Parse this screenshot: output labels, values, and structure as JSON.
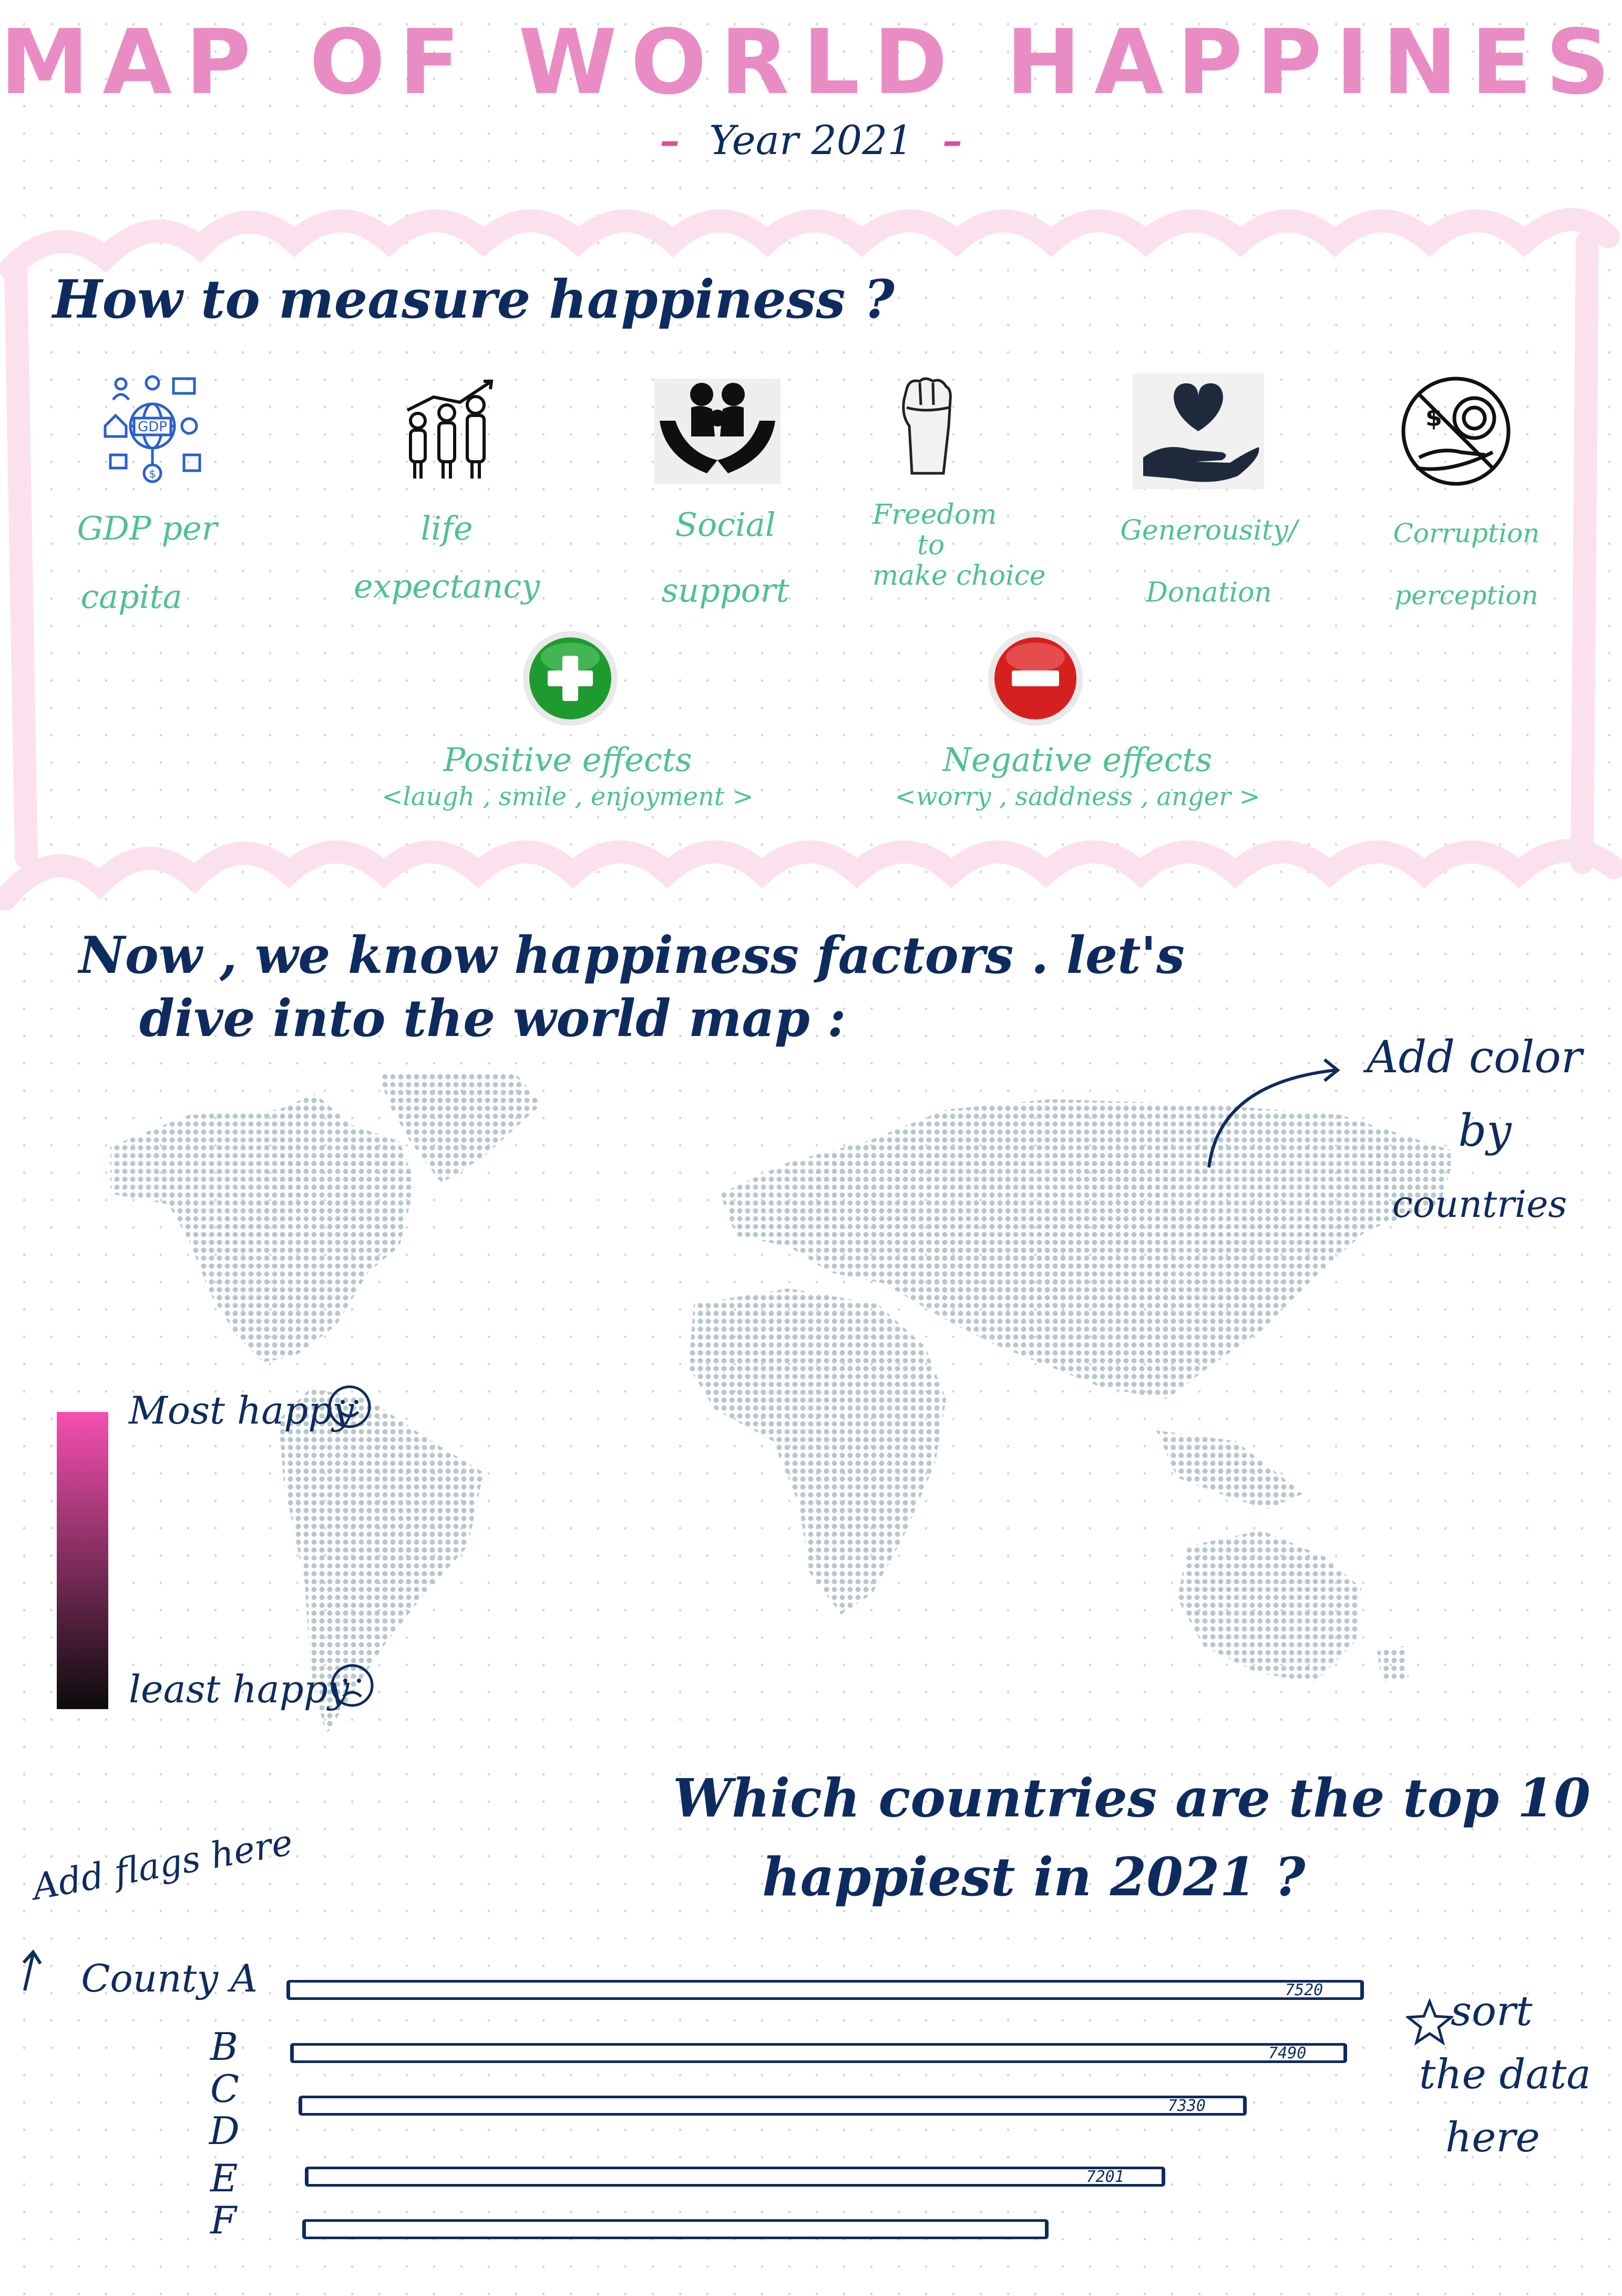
{
  "title": "MAP OF WORLD HAPPINESS",
  "year_line": "Year 2021",
  "measure": {
    "heading": "How to measure happiness ?",
    "factors": [
      {
        "icon": "gdp-network-icon",
        "label_line1": "GDP per",
        "label_line2": "capita"
      },
      {
        "icon": "people-growth-icon",
        "label_line1": "life",
        "label_line2": "expectancy"
      },
      {
        "icon": "family-hands-icon",
        "label_line1": "Social",
        "label_line2": "support"
      },
      {
        "icon": "raised-fist-icon",
        "label_line1": "Freedom",
        "label_line2": "to",
        "label_line3": "make choice"
      },
      {
        "icon": "heart-hand-icon",
        "label_line1": "Generousity/",
        "label_line2": "Donation"
      },
      {
        "icon": "no-bribery-icon",
        "label_line1": "Corruption",
        "label_line2": "perception"
      }
    ],
    "effects": [
      {
        "icon": "plus-circle-icon",
        "color": "#1e9b2f",
        "label_line1": "Positive effects",
        "label_line2": "<laugh , smile , enjoyment >"
      },
      {
        "icon": "minus-circle-icon",
        "color": "#d61f1f",
        "label_line1": "Negative effects",
        "label_line2": "<worry , saddness , anger >"
      }
    ]
  },
  "map_section": {
    "heading_line1": "Now , we know happiness factors . let's",
    "heading_line2": "dive into the world map :",
    "note_line1": "Add color",
    "note_line2": "by",
    "note_line3": "countries",
    "legend": {
      "top_label": "Most happy",
      "bottom_label": "least happy",
      "top_color": "#f54fb0",
      "bottom_color": "#0b0b0b"
    }
  },
  "chart_section": {
    "heading_line1": "Which countries are the top 10",
    "heading_line2": "happiest in 2021 ?",
    "flag_note": "Add flags here",
    "sort_note_line1": "sort",
    "sort_note_line2": "the data",
    "sort_note_line3": "here"
  },
  "chart_data": {
    "type": "bar",
    "orientation": "horizontal",
    "categories": [
      "County A",
      "B",
      "C",
      "D",
      "E",
      "F"
    ],
    "values": [
      7520,
      7490,
      7330,
      null,
      7201,
      null
    ],
    "value_labels": [
      "7520",
      "7490",
      "7330",
      "",
      "7201",
      ""
    ]
  }
}
